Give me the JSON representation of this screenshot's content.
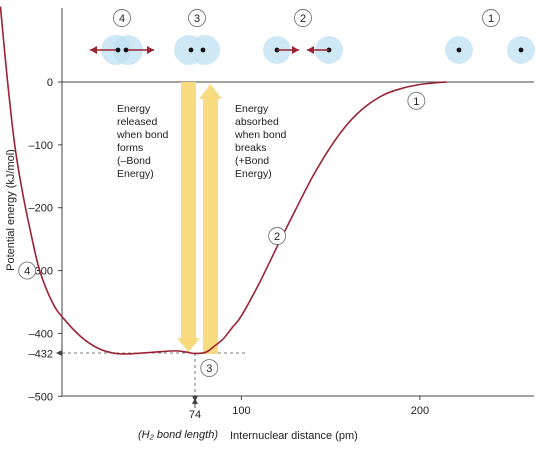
{
  "chart_data": {
    "type": "line",
    "xlabel": "Internuclear distance (pm)",
    "ylabel": "Potential energy (kJ/mol)",
    "xlim": [
      -45,
      215
    ],
    "ylim": [
      -500,
      120
    ],
    "x_ticks": [
      "74",
      "100",
      "200"
    ],
    "y_ticks": [
      "0",
      "–100",
      "–200",
      "–300",
      "–400",
      "–432",
      "–500"
    ],
    "x_tick_values": [
      74,
      100,
      200
    ],
    "y_tick_values": [
      0,
      -100,
      -200,
      -300,
      -400,
      -432,
      -500
    ],
    "series": [
      {
        "x": [
          -35,
          -31,
          -27,
          -23,
          -18,
          -13,
          -6,
          0,
          10,
          20,
          30,
          40,
          50,
          60,
          65,
          70,
          74,
          80,
          85,
          90,
          95,
          100,
          110,
          120,
          130,
          140,
          150,
          160,
          170,
          180,
          190,
          200,
          210,
          215
        ],
        "y": [
          120,
          0,
          -100,
          -170,
          -240,
          -300,
          -350,
          -375,
          -405,
          -424,
          -432,
          -432,
          -430,
          -428,
          -428,
          -430,
          -432,
          -430,
          -420,
          -408,
          -390,
          -372,
          -320,
          -262,
          -205,
          -150,
          -103,
          -65,
          -38,
          -20,
          -10,
          -4,
          -1,
          0
        ],
        "color": "#9b2335"
      }
    ],
    "annotations": {
      "bond_length_value": "74",
      "bond_length_label": "H₂ bond length",
      "min_energy_label": "–432",
      "arrow_released": [
        "Energy",
        "released",
        "when bond",
        "forms",
        "(–Bond",
        "Energy)"
      ],
      "arrow_absorbed": [
        "Energy",
        "absorbed",
        "when bond",
        "breaks",
        "(+Bond",
        "Energy)"
      ]
    },
    "curve_labels": [
      {
        "text": "4",
        "x": -20,
        "y": -300
      },
      {
        "text": "2",
        "x": 120,
        "y": -245
      },
      {
        "text": "1",
        "x": 198,
        "y": -30
      },
      {
        "text": "3",
        "x": 82,
        "y": -455
      }
    ],
    "top_stages": [
      {
        "text": "4",
        "kind": "repel"
      },
      {
        "text": "3",
        "kind": "bonded"
      },
      {
        "text": "2",
        "kind": "attract"
      },
      {
        "text": "1",
        "kind": "separate"
      }
    ],
    "colors": {
      "curve": "#9b2335",
      "arrow": "#f9d877",
      "atom_arrow": "#9b2335",
      "atom_cloud": "#bfe0f2"
    }
  }
}
